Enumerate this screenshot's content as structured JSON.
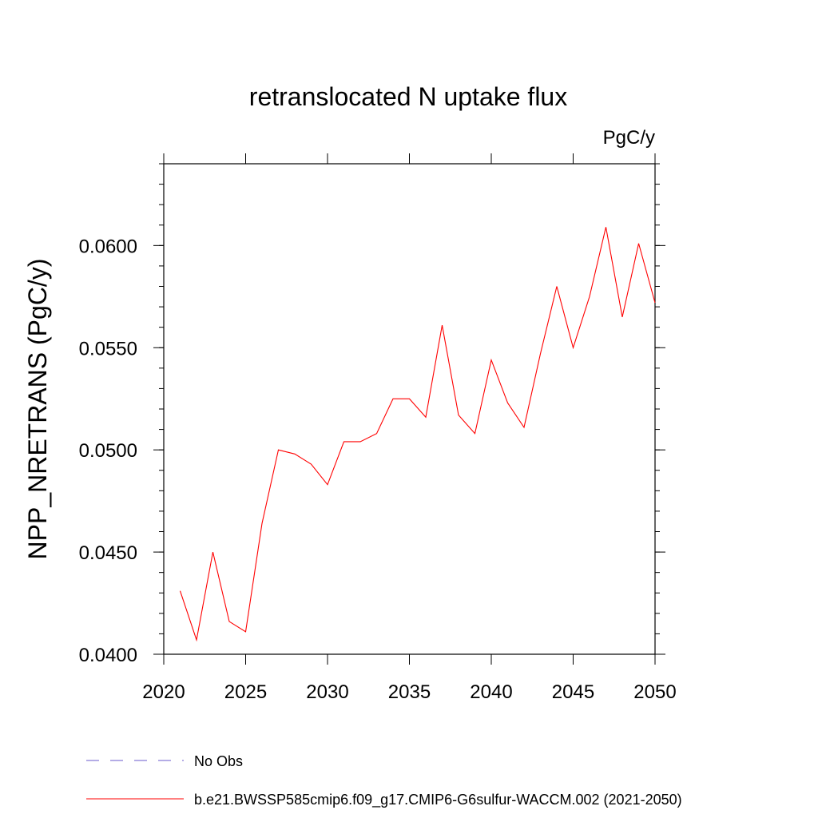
{
  "chart_data": {
    "type": "line",
    "title": "retranslocated N uptake flux",
    "units_label": "PgC/y",
    "ylabel": "NPP_NRETRANS  (PgC/y)",
    "xlabel": "",
    "xlim": [
      2020,
      2050
    ],
    "ylim": [
      0.04,
      0.064
    ],
    "x_ticks": [
      "2020",
      "2025",
      "2030",
      "2035",
      "2040",
      "2045",
      "2050"
    ],
    "y_ticks": [
      "0.0400",
      "0.0450",
      "0.0500",
      "0.0550",
      "0.0600"
    ],
    "grid": false,
    "legend_position": "bottom",
    "series": [
      {
        "name": "b.e21.BWSSP585cmip6.f09_g17.CMIP6-G6sulfur-WACCM.002 (2021-2050)",
        "color": "#ff0000",
        "style": "solid",
        "x": [
          2021,
          2022,
          2023,
          2024,
          2025,
          2026,
          2027,
          2028,
          2029,
          2030,
          2031,
          2032,
          2033,
          2034,
          2035,
          2036,
          2037,
          2038,
          2039,
          2040,
          2041,
          2042,
          2043,
          2044,
          2045,
          2046,
          2047,
          2048,
          2049,
          2050
        ],
        "values": [
          0.0431,
          0.0407,
          0.045,
          0.0416,
          0.0411,
          0.0464,
          0.05,
          0.0498,
          0.0493,
          0.0483,
          0.0504,
          0.0504,
          0.0508,
          0.0525,
          0.0525,
          0.0516,
          0.0561,
          0.0517,
          0.0508,
          0.0544,
          0.0523,
          0.0511,
          0.0547,
          0.058,
          0.055,
          0.0575,
          0.0609,
          0.0565,
          0.0601,
          0.0572
        ]
      }
    ],
    "legend": [
      {
        "label": "No Obs",
        "color": "#6a5acd",
        "style": "dashed"
      },
      {
        "label": "b.e21.BWSSP585cmip6.f09_g17.CMIP6-G6sulfur-WACCM.002 (2021-2050)",
        "color": "#ff0000",
        "style": "solid"
      }
    ]
  }
}
